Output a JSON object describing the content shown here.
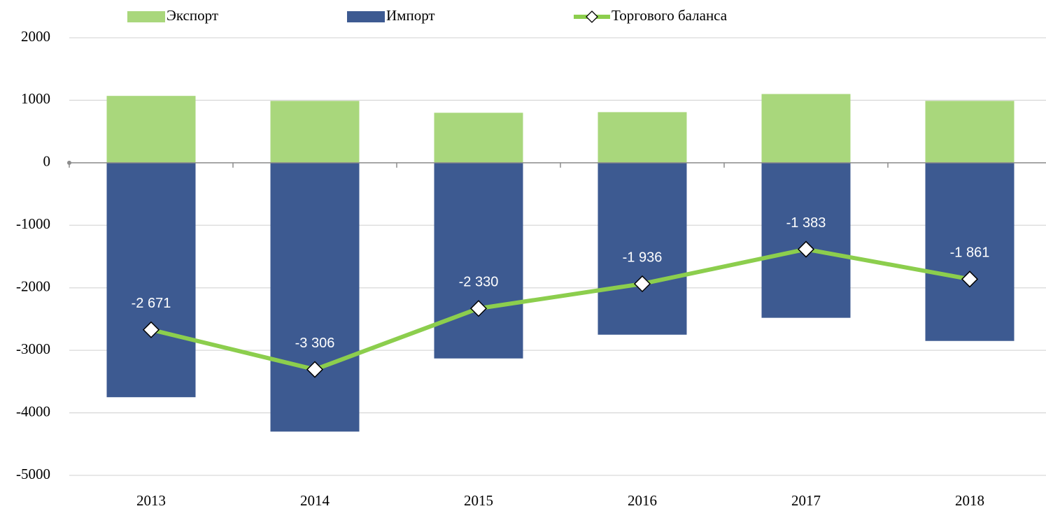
{
  "chart_data": {
    "type": "bar",
    "categories": [
      "2013",
      "2014",
      "2015",
      "2016",
      "2017",
      "2018"
    ],
    "series": [
      {
        "name": "Экспорт",
        "color": "#a9d77c",
        "values": [
          1070,
          990,
          800,
          810,
          1100,
          990
        ]
      },
      {
        "name": "Импорт",
        "color": "#3d5a91",
        "values": [
          -3750,
          -4300,
          -3130,
          -2750,
          -2480,
          -2850
        ]
      },
      {
        "name": "Торгового баланса",
        "type": "line",
        "color": "#8cce4d",
        "values": [
          -2671,
          -3306,
          -2330,
          -1936,
          -1383,
          -1861
        ],
        "value_labels": [
          "-2 671",
          "-3 306",
          "-2 330",
          "-1 936",
          "-1 383",
          "-1 861"
        ]
      }
    ],
    "ylim": [
      -5000,
      2000
    ],
    "yticks": [
      -5000,
      -4000,
      -3000,
      -2000,
      -1000,
      0,
      1000,
      2000
    ],
    "grid": true,
    "legend": "top"
  }
}
